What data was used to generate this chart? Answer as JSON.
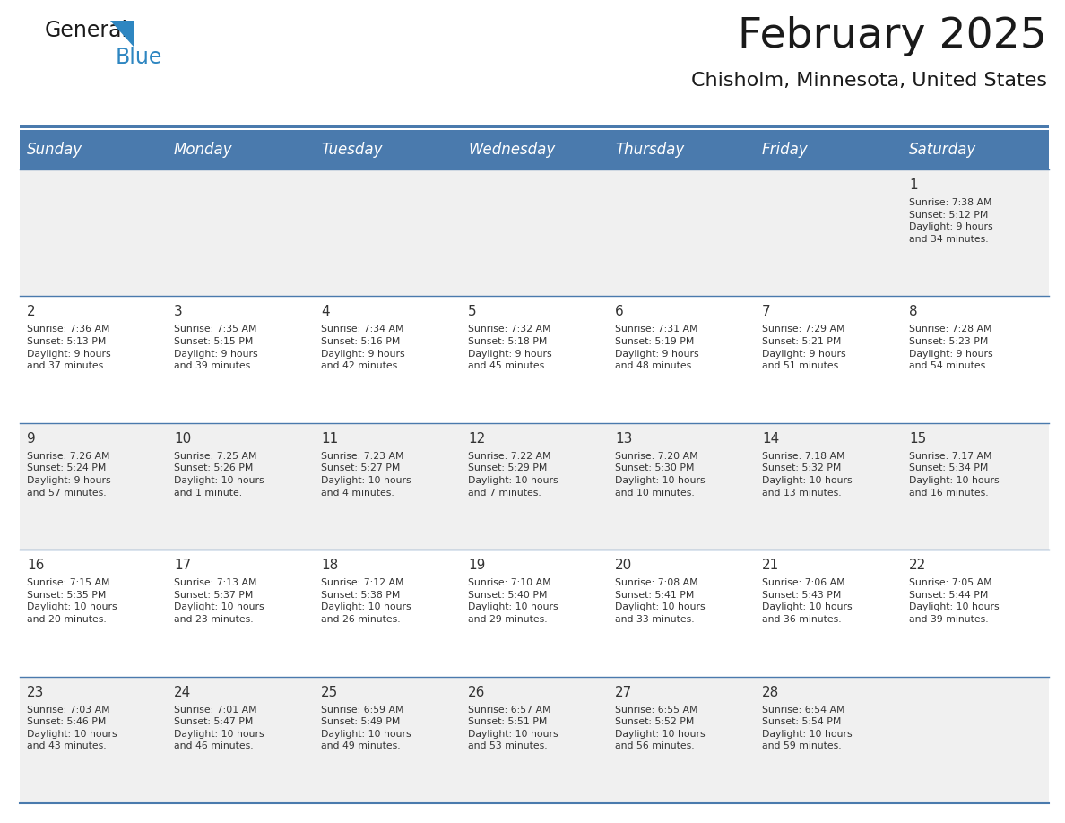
{
  "title": "February 2025",
  "subtitle": "Chisholm, Minnesota, United States",
  "header_bg": "#4a7aad",
  "header_text_color": "#ffffff",
  "day_names": [
    "Sunday",
    "Monday",
    "Tuesday",
    "Wednesday",
    "Thursday",
    "Friday",
    "Saturday"
  ],
  "row_bg_even": "#f0f0f0",
  "row_bg_odd": "#ffffff",
  "border_color": "#4a7aad",
  "cell_text_color": "#333333",
  "day_num_color": "#333333",
  "calendar": [
    [
      {
        "day": "",
        "info": ""
      },
      {
        "day": "",
        "info": ""
      },
      {
        "day": "",
        "info": ""
      },
      {
        "day": "",
        "info": ""
      },
      {
        "day": "",
        "info": ""
      },
      {
        "day": "",
        "info": ""
      },
      {
        "day": "1",
        "info": "Sunrise: 7:38 AM\nSunset: 5:12 PM\nDaylight: 9 hours\nand 34 minutes."
      }
    ],
    [
      {
        "day": "2",
        "info": "Sunrise: 7:36 AM\nSunset: 5:13 PM\nDaylight: 9 hours\nand 37 minutes."
      },
      {
        "day": "3",
        "info": "Sunrise: 7:35 AM\nSunset: 5:15 PM\nDaylight: 9 hours\nand 39 minutes."
      },
      {
        "day": "4",
        "info": "Sunrise: 7:34 AM\nSunset: 5:16 PM\nDaylight: 9 hours\nand 42 minutes."
      },
      {
        "day": "5",
        "info": "Sunrise: 7:32 AM\nSunset: 5:18 PM\nDaylight: 9 hours\nand 45 minutes."
      },
      {
        "day": "6",
        "info": "Sunrise: 7:31 AM\nSunset: 5:19 PM\nDaylight: 9 hours\nand 48 minutes."
      },
      {
        "day": "7",
        "info": "Sunrise: 7:29 AM\nSunset: 5:21 PM\nDaylight: 9 hours\nand 51 minutes."
      },
      {
        "day": "8",
        "info": "Sunrise: 7:28 AM\nSunset: 5:23 PM\nDaylight: 9 hours\nand 54 minutes."
      }
    ],
    [
      {
        "day": "9",
        "info": "Sunrise: 7:26 AM\nSunset: 5:24 PM\nDaylight: 9 hours\nand 57 minutes."
      },
      {
        "day": "10",
        "info": "Sunrise: 7:25 AM\nSunset: 5:26 PM\nDaylight: 10 hours\nand 1 minute."
      },
      {
        "day": "11",
        "info": "Sunrise: 7:23 AM\nSunset: 5:27 PM\nDaylight: 10 hours\nand 4 minutes."
      },
      {
        "day": "12",
        "info": "Sunrise: 7:22 AM\nSunset: 5:29 PM\nDaylight: 10 hours\nand 7 minutes."
      },
      {
        "day": "13",
        "info": "Sunrise: 7:20 AM\nSunset: 5:30 PM\nDaylight: 10 hours\nand 10 minutes."
      },
      {
        "day": "14",
        "info": "Sunrise: 7:18 AM\nSunset: 5:32 PM\nDaylight: 10 hours\nand 13 minutes."
      },
      {
        "day": "15",
        "info": "Sunrise: 7:17 AM\nSunset: 5:34 PM\nDaylight: 10 hours\nand 16 minutes."
      }
    ],
    [
      {
        "day": "16",
        "info": "Sunrise: 7:15 AM\nSunset: 5:35 PM\nDaylight: 10 hours\nand 20 minutes."
      },
      {
        "day": "17",
        "info": "Sunrise: 7:13 AM\nSunset: 5:37 PM\nDaylight: 10 hours\nand 23 minutes."
      },
      {
        "day": "18",
        "info": "Sunrise: 7:12 AM\nSunset: 5:38 PM\nDaylight: 10 hours\nand 26 minutes."
      },
      {
        "day": "19",
        "info": "Sunrise: 7:10 AM\nSunset: 5:40 PM\nDaylight: 10 hours\nand 29 minutes."
      },
      {
        "day": "20",
        "info": "Sunrise: 7:08 AM\nSunset: 5:41 PM\nDaylight: 10 hours\nand 33 minutes."
      },
      {
        "day": "21",
        "info": "Sunrise: 7:06 AM\nSunset: 5:43 PM\nDaylight: 10 hours\nand 36 minutes."
      },
      {
        "day": "22",
        "info": "Sunrise: 7:05 AM\nSunset: 5:44 PM\nDaylight: 10 hours\nand 39 minutes."
      }
    ],
    [
      {
        "day": "23",
        "info": "Sunrise: 7:03 AM\nSunset: 5:46 PM\nDaylight: 10 hours\nand 43 minutes."
      },
      {
        "day": "24",
        "info": "Sunrise: 7:01 AM\nSunset: 5:47 PM\nDaylight: 10 hours\nand 46 minutes."
      },
      {
        "day": "25",
        "info": "Sunrise: 6:59 AM\nSunset: 5:49 PM\nDaylight: 10 hours\nand 49 minutes."
      },
      {
        "day": "26",
        "info": "Sunrise: 6:57 AM\nSunset: 5:51 PM\nDaylight: 10 hours\nand 53 minutes."
      },
      {
        "day": "27",
        "info": "Sunrise: 6:55 AM\nSunset: 5:52 PM\nDaylight: 10 hours\nand 56 minutes."
      },
      {
        "day": "28",
        "info": "Sunrise: 6:54 AM\nSunset: 5:54 PM\nDaylight: 10 hours\nand 59 minutes."
      },
      {
        "day": "",
        "info": ""
      }
    ]
  ],
  "logo_general_color": "#1a1a1a",
  "logo_blue_color": "#2e86c1",
  "logo_triangle_color": "#2e86c1",
  "fig_width": 11.88,
  "fig_height": 9.18,
  "dpi": 100
}
